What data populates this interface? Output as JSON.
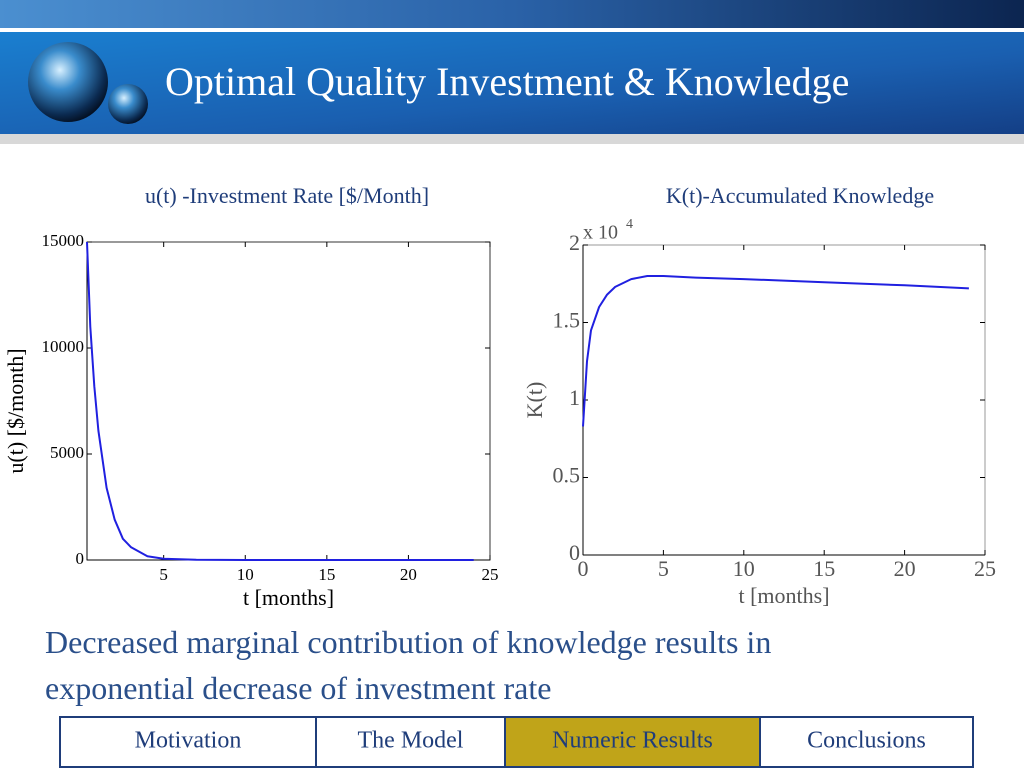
{
  "header": {
    "title": "Optimal Quality Investment & Knowledge"
  },
  "chart_data": [
    {
      "type": "line",
      "title": "u(t) -Investment Rate [$/Month]",
      "x_label": "t [months]",
      "y_label": "u(t)  [$/month]",
      "x": [
        0.3,
        0.5,
        0.75,
        1,
        1.5,
        2,
        2.5,
        3,
        4,
        5,
        7,
        10,
        15,
        20,
        24
      ],
      "series": [
        {
          "name": "u(t)",
          "color": "#2020e0",
          "values": [
            15000,
            11000,
            8200,
            6100,
            3400,
            1900,
            1000,
            600,
            180,
            60,
            10,
            0,
            0,
            0,
            0
          ]
        }
      ],
      "xlim": [
        0.3,
        25
      ],
      "xticks": [
        5,
        10,
        15,
        20,
        25
      ],
      "ylim": [
        0,
        15000
      ],
      "yticks": [
        0,
        5000,
        10000,
        15000
      ],
      "grid": false
    },
    {
      "type": "line",
      "title": "K(t)-Accumulated Knowledge",
      "x_label": "t   [months]",
      "y_label": "K(t)",
      "axis_multiplier": "x 10",
      "axis_exponent": "4",
      "x": [
        0,
        0.25,
        0.5,
        1,
        1.5,
        2,
        3,
        4,
        5,
        7,
        10,
        15,
        20,
        24
      ],
      "series": [
        {
          "name": "K(t)",
          "color": "#2020e0",
          "values": [
            8300,
            12500,
            14500,
            16000,
            16800,
            17300,
            17800,
            18000,
            18000,
            17900,
            17800,
            17600,
            17400,
            17200
          ]
        }
      ],
      "xlim": [
        0,
        25
      ],
      "xticks": [
        0,
        5,
        10,
        15,
        20,
        25
      ],
      "ylim": [
        0,
        20000
      ],
      "yticks": [
        0,
        {
          "value": 5000,
          "label": "0.5"
        },
        {
          "value": 10000,
          "label": "1"
        },
        {
          "value": 15000,
          "label": "1.5"
        },
        {
          "value": 20000,
          "label": "2"
        }
      ],
      "grid": false
    }
  ],
  "caption": "Decreased marginal contribution of knowledge results in exponential decrease of investment rate",
  "nav": {
    "items": [
      "Motivation",
      "The Model",
      "Numeric Results",
      "Conclusions"
    ],
    "active": 2
  }
}
